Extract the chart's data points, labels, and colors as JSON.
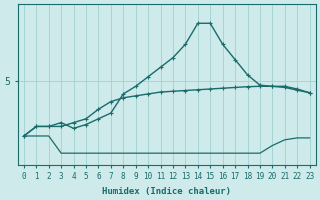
{
  "xlabel": "Humidex (Indice chaleur)",
  "bg_color": "#ceeaea",
  "grid_color": "#a8d4d4",
  "line_color": "#1a6b6b",
  "x_values": [
    0,
    1,
    2,
    3,
    4,
    5,
    6,
    7,
    8,
    9,
    10,
    11,
    12,
    13,
    14,
    15,
    16,
    17,
    18,
    19,
    20,
    21,
    22,
    23
  ],
  "line1_bottom": [
    3.55,
    3.55,
    3.55,
    3.1,
    3.1,
    3.1,
    3.1,
    3.1,
    3.1,
    3.1,
    3.1,
    3.1,
    3.1,
    3.1,
    3.1,
    3.1,
    3.1,
    3.1,
    3.1,
    3.1,
    3.3,
    3.45,
    3.5,
    3.5
  ],
  "line2_mid": [
    3.55,
    3.8,
    3.8,
    3.8,
    3.9,
    4.0,
    4.25,
    4.45,
    4.55,
    4.6,
    4.65,
    4.7,
    4.72,
    4.74,
    4.76,
    4.78,
    4.8,
    4.82,
    4.84,
    4.85,
    4.85,
    4.82,
    4.75,
    4.68
  ],
  "line3_top": [
    3.55,
    3.8,
    3.8,
    3.9,
    3.75,
    3.85,
    4.0,
    4.15,
    4.65,
    4.85,
    5.1,
    5.35,
    5.6,
    5.95,
    6.5,
    6.5,
    5.95,
    5.55,
    5.15,
    4.88,
    4.85,
    4.85,
    4.78,
    4.68
  ],
  "ylim": [
    2.8,
    7.0
  ],
  "ytick_val": "5",
  "ytick_pos": 5.0,
  "font_color": "#1a6b6b",
  "tick_fontsize": 5.5,
  "label_fontsize": 6.5
}
